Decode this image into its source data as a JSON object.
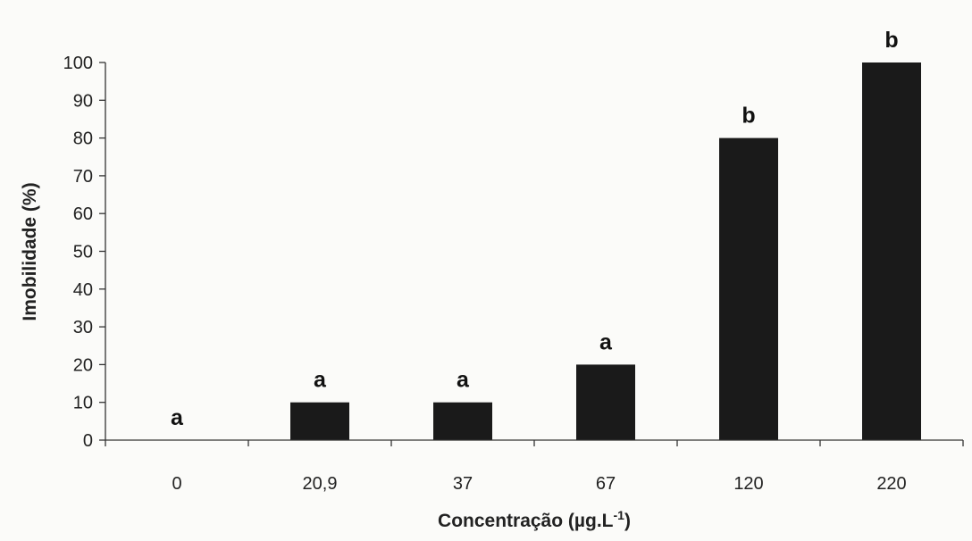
{
  "chart_data": {
    "type": "bar",
    "categories": [
      "0",
      "20,9",
      "37",
      "67",
      "120",
      "220"
    ],
    "values": [
      0,
      10,
      10,
      20,
      80,
      100
    ],
    "significance_letters": [
      "a",
      "a",
      "a",
      "a",
      "b",
      "b"
    ],
    "xlabel": "Concentração (µg.L",
    "xlabel_superscript": "-1",
    "xlabel_suffix": ")",
    "ylabel": "Imobilidade (%)",
    "ylim": [
      0,
      100
    ],
    "yticks": [
      0,
      10,
      20,
      30,
      40,
      50,
      60,
      70,
      80,
      90,
      100
    ],
    "grid": false,
    "bar_color": "#1a1a1a"
  }
}
